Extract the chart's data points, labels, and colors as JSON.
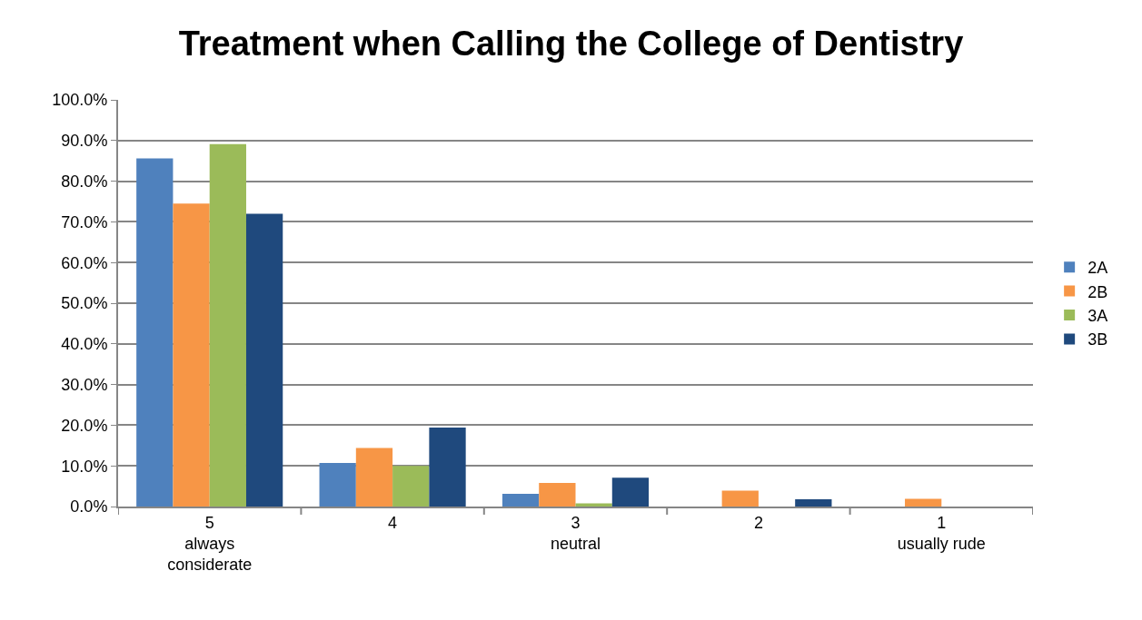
{
  "chart_data": {
    "type": "bar",
    "title": "Treatment when Calling the College of Dentistry",
    "categories": [
      "5\nalways\nconsiderate",
      "4",
      "3\nneutral",
      "2",
      "1\nusually rude"
    ],
    "series": [
      {
        "name": "2A",
        "color": "#4f81bd",
        "values": [
          85.6,
          10.7,
          3.1,
          0,
          0
        ]
      },
      {
        "name": "2B",
        "color": "#f79646",
        "values": [
          74.5,
          14.4,
          5.8,
          3.9,
          1.9
        ]
      },
      {
        "name": "3A",
        "color": "#9bbb59",
        "values": [
          89.1,
          10.0,
          0.8,
          0,
          0
        ]
      },
      {
        "name": "3B",
        "color": "#1f497d",
        "values": [
          72.0,
          19.4,
          7.1,
          1.8,
          0
        ]
      }
    ],
    "ylim": [
      0,
      100
    ],
    "yticks": [
      {
        "value": 0,
        "label": "0.0%"
      },
      {
        "value": 10,
        "label": "10.0%"
      },
      {
        "value": 20,
        "label": "20.0%"
      },
      {
        "value": 30,
        "label": "30.0%"
      },
      {
        "value": 40,
        "label": "40.0%"
      },
      {
        "value": 50,
        "label": "50.0%"
      },
      {
        "value": 60,
        "label": "60.0%"
      },
      {
        "value": 70,
        "label": "70.0%"
      },
      {
        "value": 80,
        "label": "80.0%"
      },
      {
        "value": 90,
        "label": "90.0%"
      },
      {
        "value": 100,
        "label": "100.0%"
      }
    ],
    "grid": "y",
    "legend": "right"
  }
}
